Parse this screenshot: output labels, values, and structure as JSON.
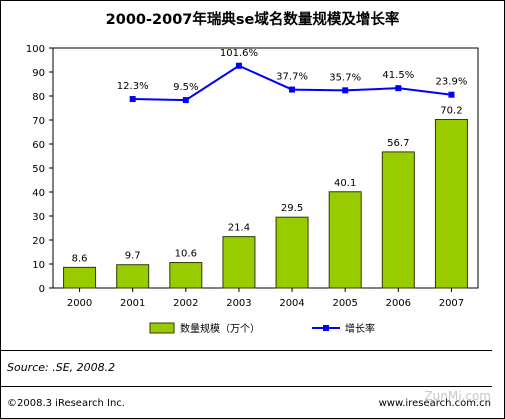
{
  "title": "2000-2007年瑞典se域名数量规模及增长率",
  "source": "Source: .SE, 2008.2",
  "copyright": "©2008.3 iResearch Inc.",
  "website": "www.iresearch.com.cn",
  "watermark": "ZunMi.com",
  "colors": {
    "bar": "#99cc00",
    "bar_edge": "#2f3a00",
    "line": "#0000ff",
    "grid": "#000000"
  },
  "chart_data": {
    "type": "bar",
    "categories": [
      "2000",
      "2001",
      "2002",
      "2003",
      "2004",
      "2005",
      "2006",
      "2007"
    ],
    "ylim": [
      0,
      100
    ],
    "yticks": [
      0,
      10,
      20,
      30,
      40,
      50,
      60,
      70,
      80,
      90,
      100
    ],
    "series": [
      {
        "name": "数量规模（万个）",
        "type": "bar",
        "values": [
          8.6,
          9.7,
          10.6,
          21.4,
          29.5,
          40.1,
          56.7,
          70.2
        ],
        "labels": [
          "8.6",
          "9.7",
          "10.6",
          "21.4",
          "29.5",
          "40.1",
          "56.7",
          "70.2"
        ]
      },
      {
        "name": "增长率",
        "type": "line",
        "x": [
          "2001",
          "2002",
          "2003",
          "2004",
          "2005",
          "2006",
          "2007"
        ],
        "values": [
          12.3,
          9.5,
          101.6,
          37.7,
          35.7,
          41.5,
          23.9
        ],
        "labels": [
          "12.3%",
          "9.5%",
          "101.6%",
          "37.7%",
          "35.7%",
          "41.5%",
          "23.9%"
        ]
      }
    ],
    "grid": false,
    "legend": "bottom"
  }
}
